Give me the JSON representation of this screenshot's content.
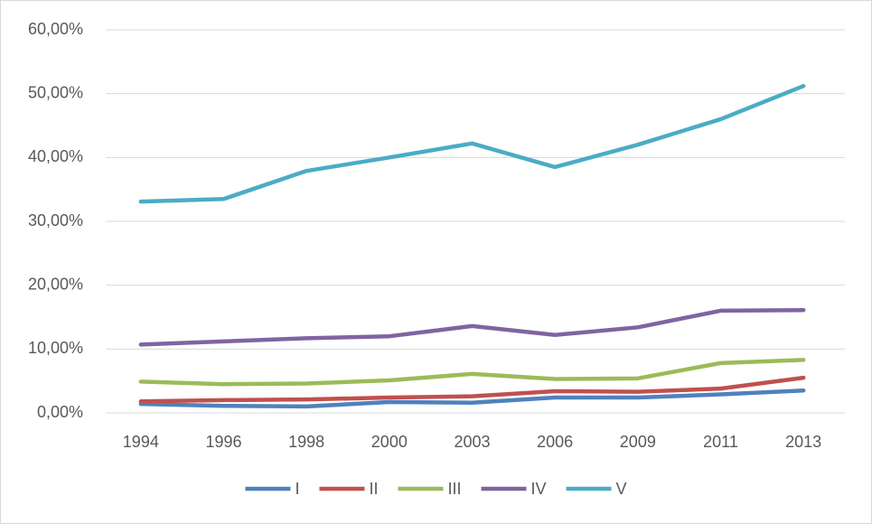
{
  "chart_data": {
    "type": "line",
    "categories": [
      "1994",
      "1996",
      "1998",
      "2000",
      "2003",
      "2006",
      "2009",
      "2011",
      "2013"
    ],
    "series": [
      {
        "name": "I",
        "color": "#4f81bd",
        "values": [
          1.4,
          1.1,
          1.0,
          1.7,
          1.6,
          2.4,
          2.4,
          2.9,
          3.5
        ]
      },
      {
        "name": "II",
        "color": "#c0504d",
        "values": [
          1.8,
          2.0,
          2.1,
          2.4,
          2.6,
          3.4,
          3.3,
          3.8,
          5.5
        ]
      },
      {
        "name": "III",
        "color": "#9bbb59",
        "values": [
          4.9,
          4.5,
          4.6,
          5.1,
          6.1,
          5.3,
          5.4,
          7.8,
          8.3
        ]
      },
      {
        "name": "IV",
        "color": "#8064a2",
        "values": [
          10.7,
          11.2,
          11.7,
          12.0,
          13.6,
          12.2,
          13.4,
          16.0,
          16.1
        ]
      },
      {
        "name": "V",
        "color": "#4bacc6",
        "values": [
          33.1,
          33.5,
          37.9,
          40.0,
          42.2,
          38.5,
          42.0,
          46.0,
          51.2
        ]
      }
    ],
    "ylim": [
      0,
      60
    ],
    "yticks": [
      {
        "value": 0,
        "label": "0,00%"
      },
      {
        "value": 10,
        "label": "10,00%"
      },
      {
        "value": 20,
        "label": "20,00%"
      },
      {
        "value": 30,
        "label": "30,00%"
      },
      {
        "value": 40,
        "label": "40,00%"
      },
      {
        "value": 50,
        "label": "50,00%"
      },
      {
        "value": 60,
        "label": "60,00%"
      }
    ],
    "grid": true,
    "legend": "bottom"
  }
}
